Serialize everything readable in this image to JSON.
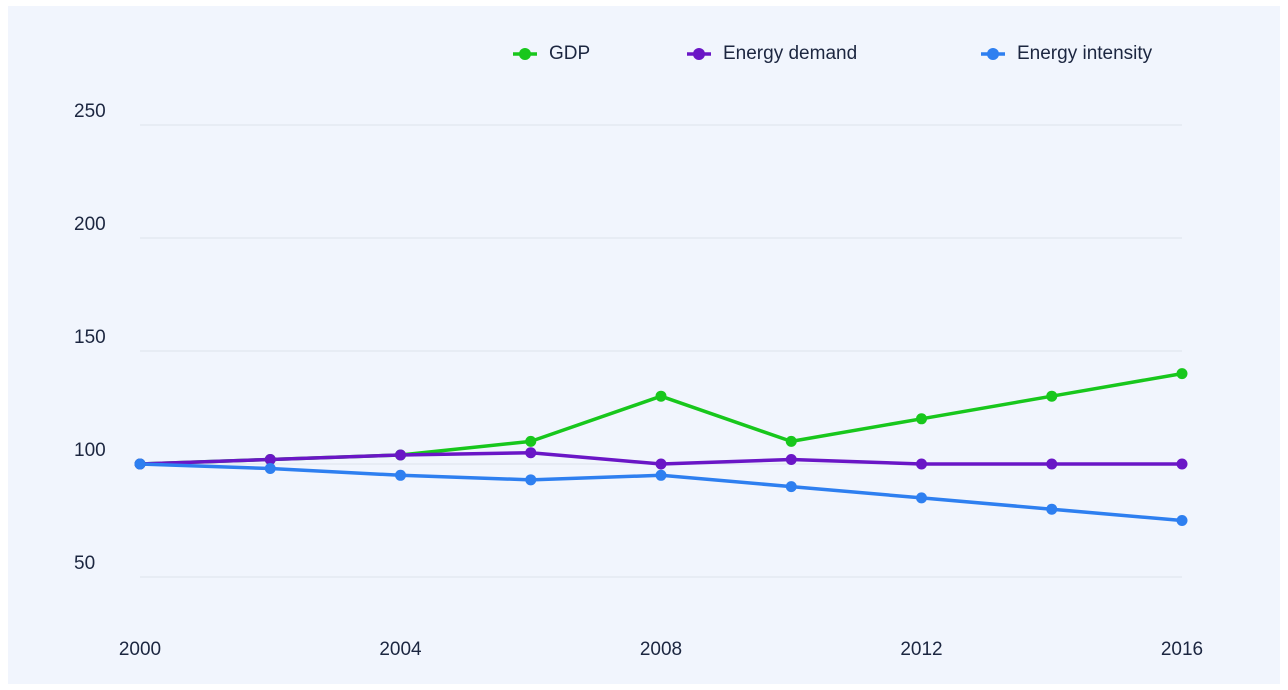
{
  "chart_data": {
    "type": "line",
    "x": [
      2000,
      2002,
      2004,
      2006,
      2008,
      2010,
      2012,
      2014,
      2016
    ],
    "series": [
      {
        "name": "GDP",
        "color": "#18c71c",
        "values": [
          100,
          102,
          104,
          110,
          130,
          110,
          120,
          130,
          140
        ]
      },
      {
        "name": "Energy demand",
        "color": "#6a16c6",
        "values": [
          100,
          102,
          104,
          105,
          100,
          102,
          100,
          100,
          100
        ]
      },
      {
        "name": "Energy intensity",
        "color": "#2e7ff0",
        "values": [
          100,
          98,
          95,
          93,
          95,
          90,
          85,
          80,
          75
        ]
      }
    ],
    "xlim": [
      2000,
      2016
    ],
    "xticks": [
      2000,
      2004,
      2008,
      2012,
      2016
    ],
    "ylim": [
      50,
      250
    ],
    "yticks": [
      50,
      100,
      150,
      200,
      250
    ],
    "grid": true,
    "legend": "top-right"
  }
}
